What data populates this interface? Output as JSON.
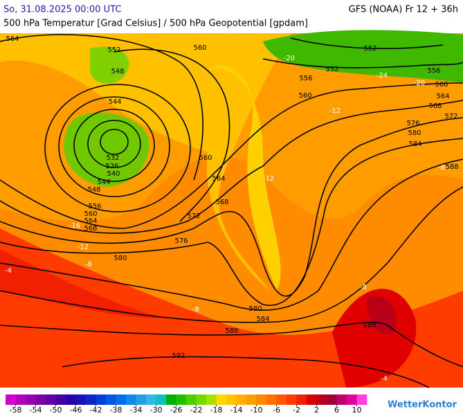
{
  "header": {
    "datetime": "So, 31.08.2025 00:00 UTC",
    "model": "GFS (NOAA) Fr 12 + 36h",
    "subtitle": "500 hPa Temperatur [Grad Celsius] / 500 hPa Geopotential [gpdam]"
  },
  "geopotential_labels": [
    564,
    552,
    560,
    548,
    544,
    532,
    536,
    540,
    544,
    548,
    556,
    560,
    564,
    568,
    560,
    564,
    568,
    572,
    576,
    580,
    580,
    584,
    588,
    592,
    588,
    552,
    552,
    556,
    560,
    556,
    560,
    564,
    568,
    572,
    576,
    580,
    584,
    588
  ],
  "temperature_labels": [
    -24,
    -20,
    -20,
    -12,
    -12,
    -12,
    -16,
    -8,
    -8,
    -8,
    -8,
    -4,
    -4
  ],
  "colorbar": {
    "colors": [
      "#d000d0",
      "#b400c0",
      "#9800b0",
      "#7c00a8",
      "#6000a4",
      "#4400a4",
      "#2c00a8",
      "#1810b8",
      "#0828c8",
      "#0040d8",
      "#0058e0",
      "#0070e8",
      "#1088e8",
      "#20a0e8",
      "#30b8e8",
      "#10c0c0",
      "#00b000",
      "#20c000",
      "#48d000",
      "#78d800",
      "#a8e000",
      "#ffd700",
      "#ffc400",
      "#ffb000",
      "#ff9c00",
      "#ff8800",
      "#ff7000",
      "#ff5800",
      "#ff3c00",
      "#f02000",
      "#d80000",
      "#b80018",
      "#a00038",
      "#c00068",
      "#e000a0",
      "#ff40e0"
    ],
    "ticks": [
      -58,
      -54,
      -50,
      -46,
      -42,
      -38,
      -34,
      -30,
      -26,
      -22,
      -18,
      -14,
      -10,
      -6,
      -2,
      2,
      6,
      10
    ]
  },
  "brand": "WetterKontor"
}
